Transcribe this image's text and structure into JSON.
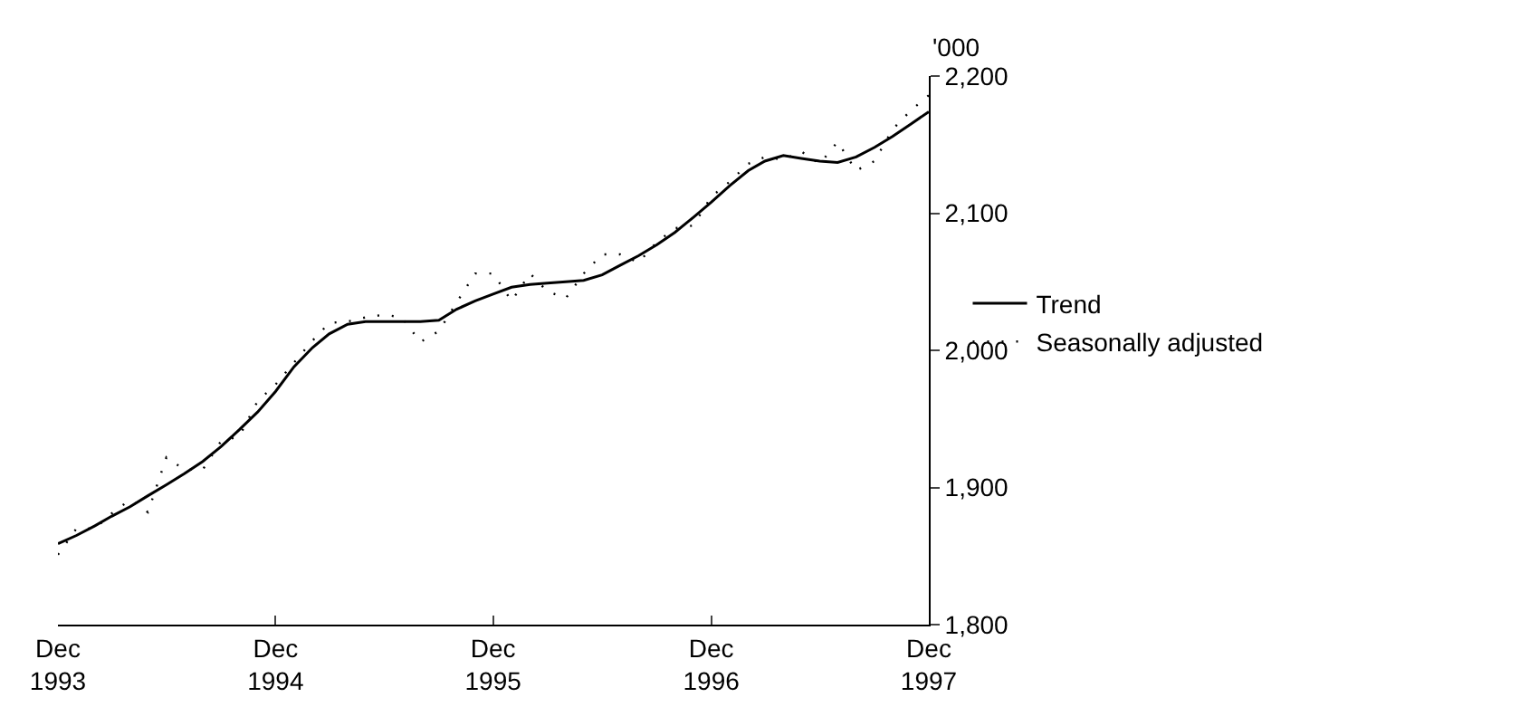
{
  "chart_data": {
    "type": "line",
    "ylabel": "'000",
    "x": [
      "1993-12",
      "1994-01",
      "1994-02",
      "1994-03",
      "1994-04",
      "1994-05",
      "1994-06",
      "1994-07",
      "1994-08",
      "1994-09",
      "1994-10",
      "1994-11",
      "1994-12",
      "1995-01",
      "1995-02",
      "1995-03",
      "1995-04",
      "1995-05",
      "1995-06",
      "1995-07",
      "1995-08",
      "1995-09",
      "1995-10",
      "1995-11",
      "1995-12",
      "1996-01",
      "1996-02",
      "1996-03",
      "1996-04",
      "1996-05",
      "1996-06",
      "1996-07",
      "1996-08",
      "1996-09",
      "1996-10",
      "1996-11",
      "1996-12",
      "1997-01",
      "1997-02",
      "1997-03",
      "1997-04",
      "1997-05",
      "1997-06",
      "1997-07",
      "1997-08",
      "1997-09",
      "1997-10",
      "1997-11",
      "1997-12"
    ],
    "series": [
      {
        "name": "Trend",
        "color": "#000000",
        "line_style": "solid",
        "values": [
          1859,
          1865,
          1872,
          1879,
          1886,
          1894,
          1902,
          1910,
          1919,
          1930,
          1942,
          1955,
          1970,
          1988,
          2002,
          2012,
          2019,
          2021,
          2021,
          2021,
          2021,
          2022,
          2030,
          2036,
          2041,
          2046,
          2048,
          2049,
          2050,
          2051,
          2055,
          2062,
          2069,
          2077,
          2086,
          2097,
          2108,
          2120,
          2131,
          2138,
          2142,
          2140,
          2138,
          2137,
          2141,
          2148,
          2156,
          2165,
          2174
        ]
      },
      {
        "name": "Seasonally adjusted",
        "color": "#000000",
        "line_style": "dotted",
        "values": [
          1851,
          1870,
          1870,
          1881,
          1891,
          1882,
          1922,
          1913,
          1913,
          1934,
          1937,
          1963,
          1975,
          1991,
          2007,
          2020,
          2021,
          2024,
          2026,
          2024,
          2006,
          2014,
          2035,
          2056,
          2056,
          2036,
          2056,
          2043,
          2038,
          2056,
          2070,
          2070,
          2064,
          2079,
          2089,
          2091,
          2112,
          2123,
          2136,
          2141,
          2139,
          2145,
          2136,
          2152,
          2131,
          2138,
          2161,
          2175,
          2186
        ]
      }
    ],
    "xlim": [
      "1993-12",
      "1997-12"
    ],
    "xticks": [
      {
        "value": "1993-12",
        "label": "Dec 1993"
      },
      {
        "value": "1994-12",
        "label": "Dec 1994"
      },
      {
        "value": "1995-12",
        "label": "Dec 1995"
      },
      {
        "value": "1996-12",
        "label": "Dec 1996"
      },
      {
        "value": "1997-12",
        "label": "Dec 1997"
      }
    ],
    "ylim": [
      1800,
      2200
    ],
    "yticks": [
      {
        "value": 1800,
        "label": "1,800"
      },
      {
        "value": 1900,
        "label": "1,900"
      },
      {
        "value": 2000,
        "label": "2,000"
      },
      {
        "value": 2100,
        "label": "2,100"
      },
      {
        "value": 2200,
        "label": "2,200"
      }
    ],
    "grid": false,
    "legend": "right",
    "marker": "none"
  }
}
